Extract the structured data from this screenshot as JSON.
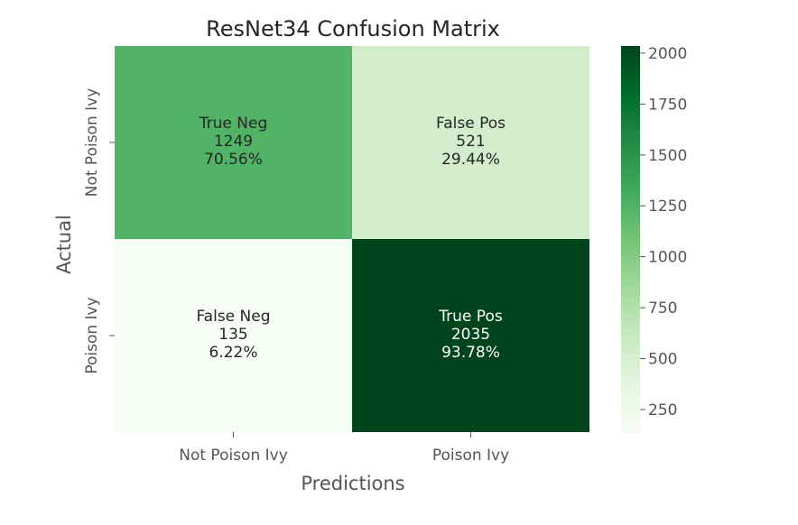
{
  "chart_data": {
    "type": "heatmap",
    "title": "ResNet34 Confusion Matrix",
    "xlabel": "Predictions",
    "ylabel": "Actual",
    "x_categories": [
      "Not Poison Ivy",
      "Poison Ivy"
    ],
    "y_categories": [
      "Not Poison Ivy",
      "Poison Ivy"
    ],
    "values": [
      [
        1249,
        521
      ],
      [
        135,
        2035
      ]
    ],
    "cell_labels": [
      [
        "True Neg",
        "False Pos"
      ],
      [
        "False Neg",
        "True Pos"
      ]
    ],
    "percentages": [
      [
        "70.56%",
        "29.44%"
      ],
      [
        "6.22%",
        "93.78%"
      ]
    ],
    "colorbar": {
      "min": 135,
      "max": 2035,
      "ticks": [
        250,
        500,
        750,
        1000,
        1250,
        1500,
        1750,
        2000
      ],
      "colors": [
        "#f7fcf5",
        "#e5f5e0",
        "#c7e9c0",
        "#a1d99b",
        "#74c476",
        "#41ab5d",
        "#238b45",
        "#006d2c",
        "#00441b"
      ]
    },
    "grid": false
  }
}
